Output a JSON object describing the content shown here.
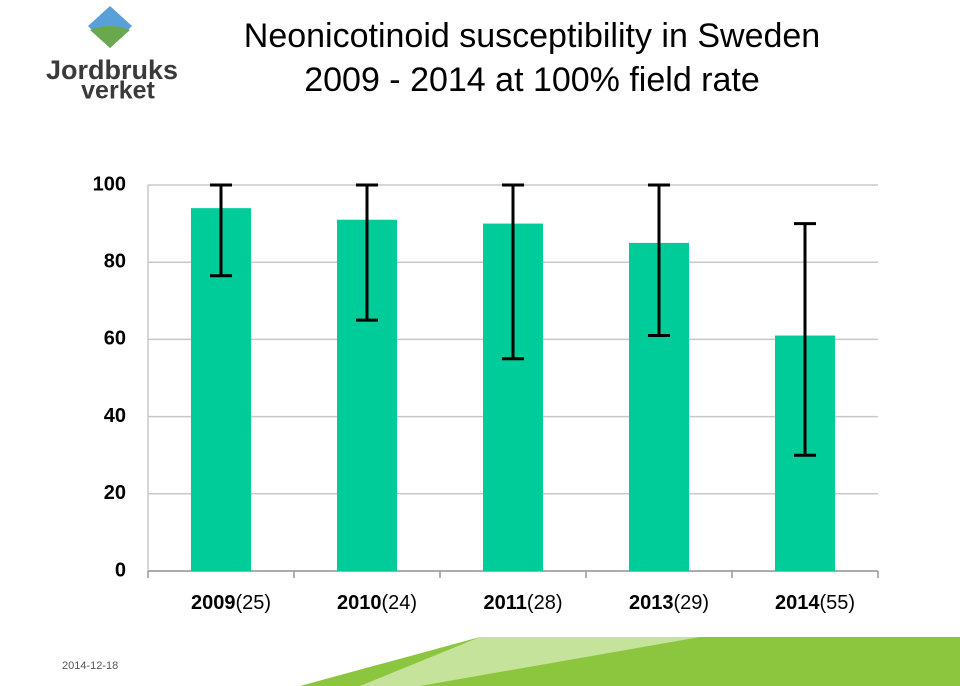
{
  "chart_data": {
    "type": "bar",
    "title_lines": [
      "Neonicotinoid susceptibility in Sweden",
      "2009 - 2014 at 100% field rate"
    ],
    "categories": [
      "2009",
      "2010",
      "2011",
      "2013",
      "2014"
    ],
    "sample_sizes": [
      "(25)",
      "(24)",
      "(28)",
      "(29)",
      "(55)"
    ],
    "values": [
      94,
      91,
      90,
      85,
      61
    ],
    "error_min": [
      76.5,
      65,
      55,
      61,
      30
    ],
    "error_max": [
      100,
      100,
      100,
      100,
      90
    ],
    "color": "#00cc99",
    "ylim": [
      0,
      100
    ],
    "yticks": [
      0,
      20,
      40,
      60,
      80,
      100
    ],
    "grid": true
  },
  "logo": {
    "line1": "Jordbruks",
    "line2": "verket"
  },
  "footer": {
    "date": "2014-12-18"
  }
}
